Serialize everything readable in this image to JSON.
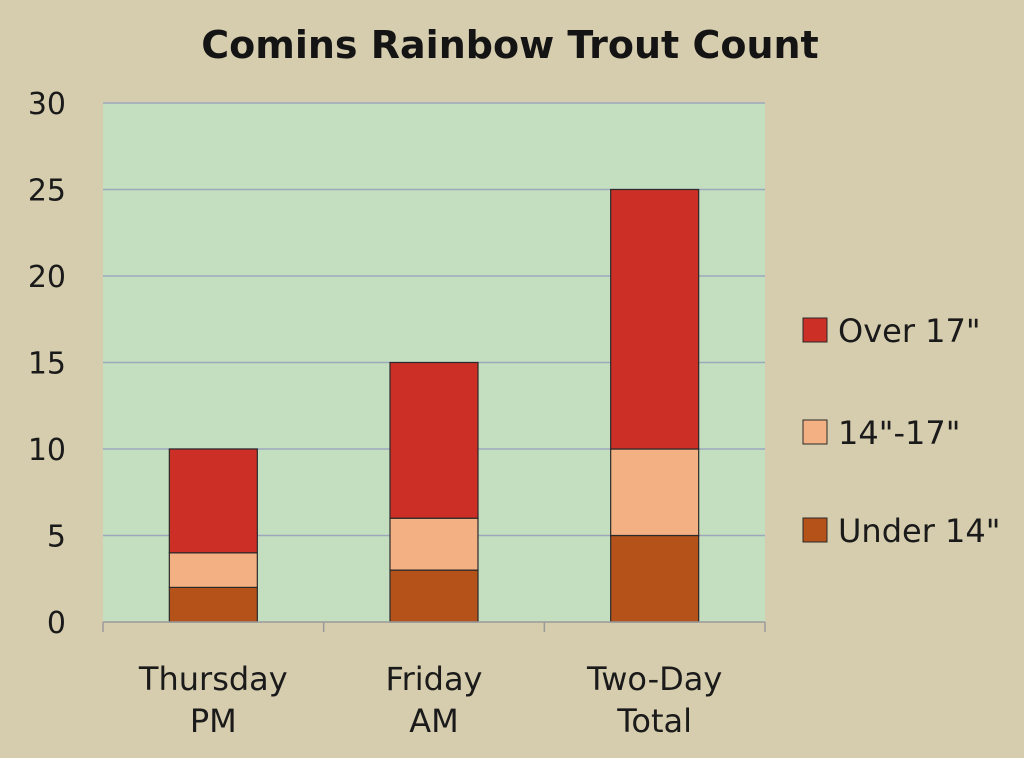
{
  "chart_data": {
    "type": "bar",
    "stacked": true,
    "title": "Comins Rainbow Trout Count",
    "xlabel": "",
    "ylabel": "",
    "categories": [
      [
        "Thursday",
        "PM"
      ],
      [
        "Friday",
        "AM"
      ],
      [
        "Two-Day",
        "Total"
      ]
    ],
    "series": [
      {
        "name": "Under 14\"",
        "values": [
          2,
          3,
          5
        ],
        "color": "#b4521a"
      },
      {
        "name": "14\"-17\"",
        "values": [
          2,
          3,
          5
        ],
        "color": "#f2b083"
      },
      {
        "name": "Over 17\"",
        "values": [
          6,
          9,
          15
        ],
        "color": "#cc2f26"
      }
    ],
    "legend_order": [
      "Over 17\"",
      "14\"-17\"",
      "Under 14\""
    ],
    "ylim": [
      0,
      30
    ],
    "yticks": [
      0,
      5,
      10,
      15,
      20,
      25,
      30
    ],
    "grid": true,
    "legend_position": "right",
    "plot_background": "#c3dfbf",
    "page_background": "#d6cdae",
    "gridline_color": "#9ea8bd"
  }
}
